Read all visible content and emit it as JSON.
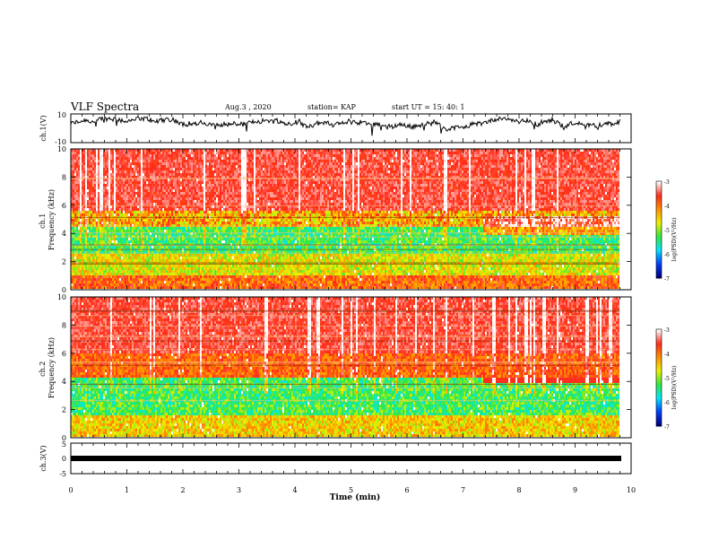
{
  "header": {
    "title": "VLF Spectra",
    "date": "Aug.3 , 2020",
    "station": "station= KAP",
    "start": "start UT = 15: 40: 1"
  },
  "chart_data": [
    {
      "type": "line",
      "name": "ch1-waveform",
      "ylabel": "ch.1(V)",
      "ylim": [
        -10,
        10
      ],
      "yticks": [
        "10",
        "-10"
      ],
      "xlim": [
        0,
        10
      ],
      "level": 0.45
    },
    {
      "type": "heatmap",
      "name": "ch1-spectrogram",
      "ylabel": "ch.1 Frequency (kHz)",
      "ylim": [
        0,
        10
      ],
      "yticks": [
        "0",
        "2",
        "4",
        "6",
        "8",
        "10"
      ],
      "xlim": [
        0,
        9.8
      ],
      "colorbar": {
        "label": "log(PSD)(V²/Hz)",
        "min": -7,
        "max": -3,
        "ticks": [
          "-3",
          "-4",
          "-5",
          "-6",
          "-7"
        ]
      }
    },
    {
      "type": "heatmap",
      "name": "ch2-spectrogram",
      "ylabel": "ch.2 Frequency (kHz)",
      "ylim": [
        0,
        10
      ],
      "yticks": [
        "0",
        "2",
        "4",
        "6",
        "8",
        "10"
      ],
      "xlim": [
        0,
        9.8
      ],
      "colorbar": {
        "label": "log(PSD)(V²/Hz)",
        "min": -7,
        "max": -3,
        "ticks": [
          "-3",
          "-4",
          "-5",
          "-6",
          "-7"
        ]
      }
    },
    {
      "type": "line",
      "name": "ch3-waveform",
      "ylabel": "ch.3(V)",
      "ylim": [
        -5,
        5
      ],
      "yticks": [
        "5",
        "0",
        "-5"
      ],
      "xlim": [
        0,
        10
      ],
      "level": -1
    }
  ],
  "xaxis": {
    "label": "Time (min)",
    "ticks": [
      "0",
      "1",
      "2",
      "3",
      "4",
      "5",
      "6",
      "7",
      "8",
      "9",
      "10"
    ]
  },
  "colors": {
    "low": "#000080",
    "blue": "#0040ff",
    "cyan": "#00e8ff",
    "green": "#30e840",
    "yellow": "#f0f000",
    "orange": "#ff9000",
    "red": "#ff2a1a",
    "high": "#ffffff"
  }
}
